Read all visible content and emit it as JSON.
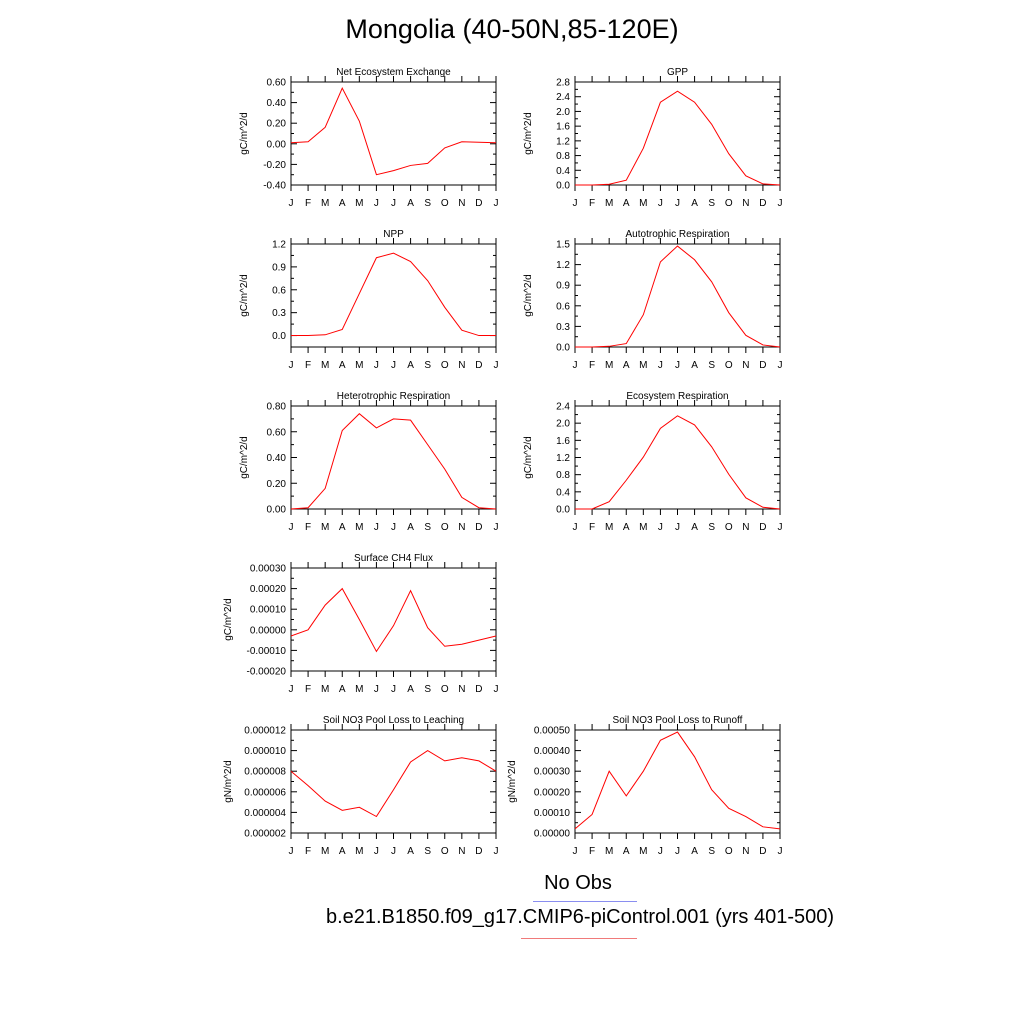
{
  "page_title": "Mongolia (40-50N,85-120E)",
  "legend": {
    "obs_label": "No Obs",
    "obs_color": "#8a8ef0",
    "case_label": "b.e21.B1850.f09_g17.CMIP6-piControl.001 (yrs 401-500)",
    "case_color": "#f07a7a"
  },
  "series_color": "#ff0000",
  "chart_data": [
    {
      "type": "line",
      "title": "Net Ecosystem Exchange",
      "ylabel": "gC/m^2/d",
      "x": [
        "J",
        "F",
        "M",
        "A",
        "M",
        "J",
        "J",
        "A",
        "S",
        "O",
        "N",
        "D",
        "J"
      ],
      "values": [
        0.01,
        0.02,
        0.16,
        0.54,
        0.22,
        -0.3,
        -0.26,
        -0.21,
        -0.19,
        -0.04,
        0.02,
        0.015,
        0.01
      ],
      "ylim": [
        -0.4,
        0.6
      ],
      "yticks": [
        "-0.40",
        "-0.20",
        "0.00",
        "0.20",
        "0.40",
        "0.60"
      ]
    },
    {
      "type": "line",
      "title": "GPP",
      "ylabel": "gC/m^2/d",
      "x": [
        "J",
        "F",
        "M",
        "A",
        "M",
        "J",
        "J",
        "A",
        "S",
        "O",
        "N",
        "D",
        "J"
      ],
      "values": [
        0.0,
        0.0,
        0.02,
        0.13,
        1.0,
        2.25,
        2.55,
        2.25,
        1.65,
        0.85,
        0.25,
        0.03,
        0.0
      ],
      "ylim": [
        0,
        2.8
      ],
      "yticks": [
        "0.0",
        "0.4",
        "0.8",
        "1.2",
        "1.6",
        "2.0",
        "2.4",
        "2.8"
      ]
    },
    {
      "type": "line",
      "title": "NPP",
      "ylabel": "gC/m^2/d",
      "x": [
        "J",
        "F",
        "M",
        "A",
        "M",
        "J",
        "J",
        "A",
        "S",
        "O",
        "N",
        "D",
        "J"
      ],
      "values": [
        0.0,
        0.0,
        0.01,
        0.08,
        0.55,
        1.02,
        1.08,
        0.97,
        0.72,
        0.37,
        0.07,
        0.0,
        0.0
      ],
      "ylim": [
        -0.15,
        1.2
      ],
      "yticks": [
        "0.0",
        "0.3",
        "0.6",
        "0.9",
        "1.2"
      ]
    },
    {
      "type": "line",
      "title": "Autotrophic Respiration",
      "ylabel": "gC/m^2/d",
      "x": [
        "J",
        "F",
        "M",
        "A",
        "M",
        "J",
        "J",
        "A",
        "S",
        "O",
        "N",
        "D",
        "J"
      ],
      "values": [
        0.0,
        0.0,
        0.01,
        0.05,
        0.47,
        1.24,
        1.47,
        1.27,
        0.95,
        0.5,
        0.17,
        0.03,
        0.0
      ],
      "ylim": [
        0,
        1.5
      ],
      "yticks": [
        "0.0",
        "0.3",
        "0.6",
        "0.9",
        "1.2",
        "1.5"
      ]
    },
    {
      "type": "line",
      "title": "Heterotrophic Respiration",
      "ylabel": "gC/m^2/d",
      "x": [
        "J",
        "F",
        "M",
        "A",
        "M",
        "J",
        "J",
        "A",
        "S",
        "O",
        "N",
        "D",
        "J"
      ],
      "values": [
        0.0,
        0.01,
        0.16,
        0.61,
        0.74,
        0.63,
        0.7,
        0.69,
        0.5,
        0.31,
        0.09,
        0.01,
        0.0
      ],
      "ylim": [
        0,
        0.8
      ],
      "yticks": [
        "0.00",
        "0.20",
        "0.40",
        "0.60",
        "0.80"
      ]
    },
    {
      "type": "line",
      "title": "Ecosystem Respiration",
      "ylabel": "gC/m^2/d",
      "x": [
        "J",
        "F",
        "M",
        "A",
        "M",
        "J",
        "J",
        "A",
        "S",
        "O",
        "N",
        "D",
        "J"
      ],
      "values": [
        0.0,
        0.0,
        0.17,
        0.67,
        1.21,
        1.88,
        2.17,
        1.96,
        1.45,
        0.81,
        0.26,
        0.04,
        0.0
      ],
      "ylim": [
        0,
        2.4
      ],
      "yticks": [
        "0.0",
        "0.4",
        "0.8",
        "1.2",
        "1.6",
        "2.0",
        "2.4"
      ]
    },
    {
      "type": "line",
      "title": "Surface CH4 Flux",
      "ylabel": "gC/m^2/d",
      "x": [
        "J",
        "F",
        "M",
        "A",
        "M",
        "J",
        "J",
        "A",
        "S",
        "O",
        "N",
        "D",
        "J"
      ],
      "values": [
        -3e-05,
        0.0,
        0.00012,
        0.0002,
        5e-05,
        -0.000105,
        2e-05,
        0.00019,
        1e-05,
        -8e-05,
        -7e-05,
        -5e-05,
        -3e-05
      ],
      "ylim": [
        -0.0002,
        0.0003
      ],
      "yticks": [
        "-0.00020",
        "-0.00010",
        "0.00000",
        "0.00010",
        "0.00020",
        "0.00030"
      ]
    },
    {
      "type": "line",
      "title": "Soil NO3 Pool Loss to Leaching",
      "ylabel": "gN/m^2/d",
      "x": [
        "J",
        "F",
        "M",
        "A",
        "M",
        "J",
        "J",
        "A",
        "S",
        "O",
        "N",
        "D",
        "J"
      ],
      "values": [
        8e-06,
        6.6e-06,
        5.1e-06,
        4.2e-06,
        4.5e-06,
        3.6e-06,
        6.2e-06,
        8.9e-06,
        1e-05,
        9e-06,
        9.3e-06,
        9e-06,
        8e-06
      ],
      "ylim": [
        2e-06,
        1.2e-05
      ],
      "yticks": [
        "0.000002",
        "0.000004",
        "0.000006",
        "0.000008",
        "0.000010",
        "0.000012"
      ]
    },
    {
      "type": "line",
      "title": "Soil NO3 Pool Loss to Runoff",
      "ylabel": "gN/m^2/d",
      "x": [
        "J",
        "F",
        "M",
        "A",
        "M",
        "J",
        "J",
        "A",
        "S",
        "O",
        "N",
        "D",
        "J"
      ],
      "values": [
        2e-05,
        9e-05,
        0.0003,
        0.00018,
        0.0003,
        0.00045,
        0.00049,
        0.00037,
        0.00021,
        0.00012,
        8e-05,
        3e-05,
        2e-05
      ],
      "ylim": [
        0,
        0.0005
      ],
      "yticks": [
        "0.00000",
        "0.00010",
        "0.00020",
        "0.00030",
        "0.00040",
        "0.00050"
      ]
    }
  ]
}
